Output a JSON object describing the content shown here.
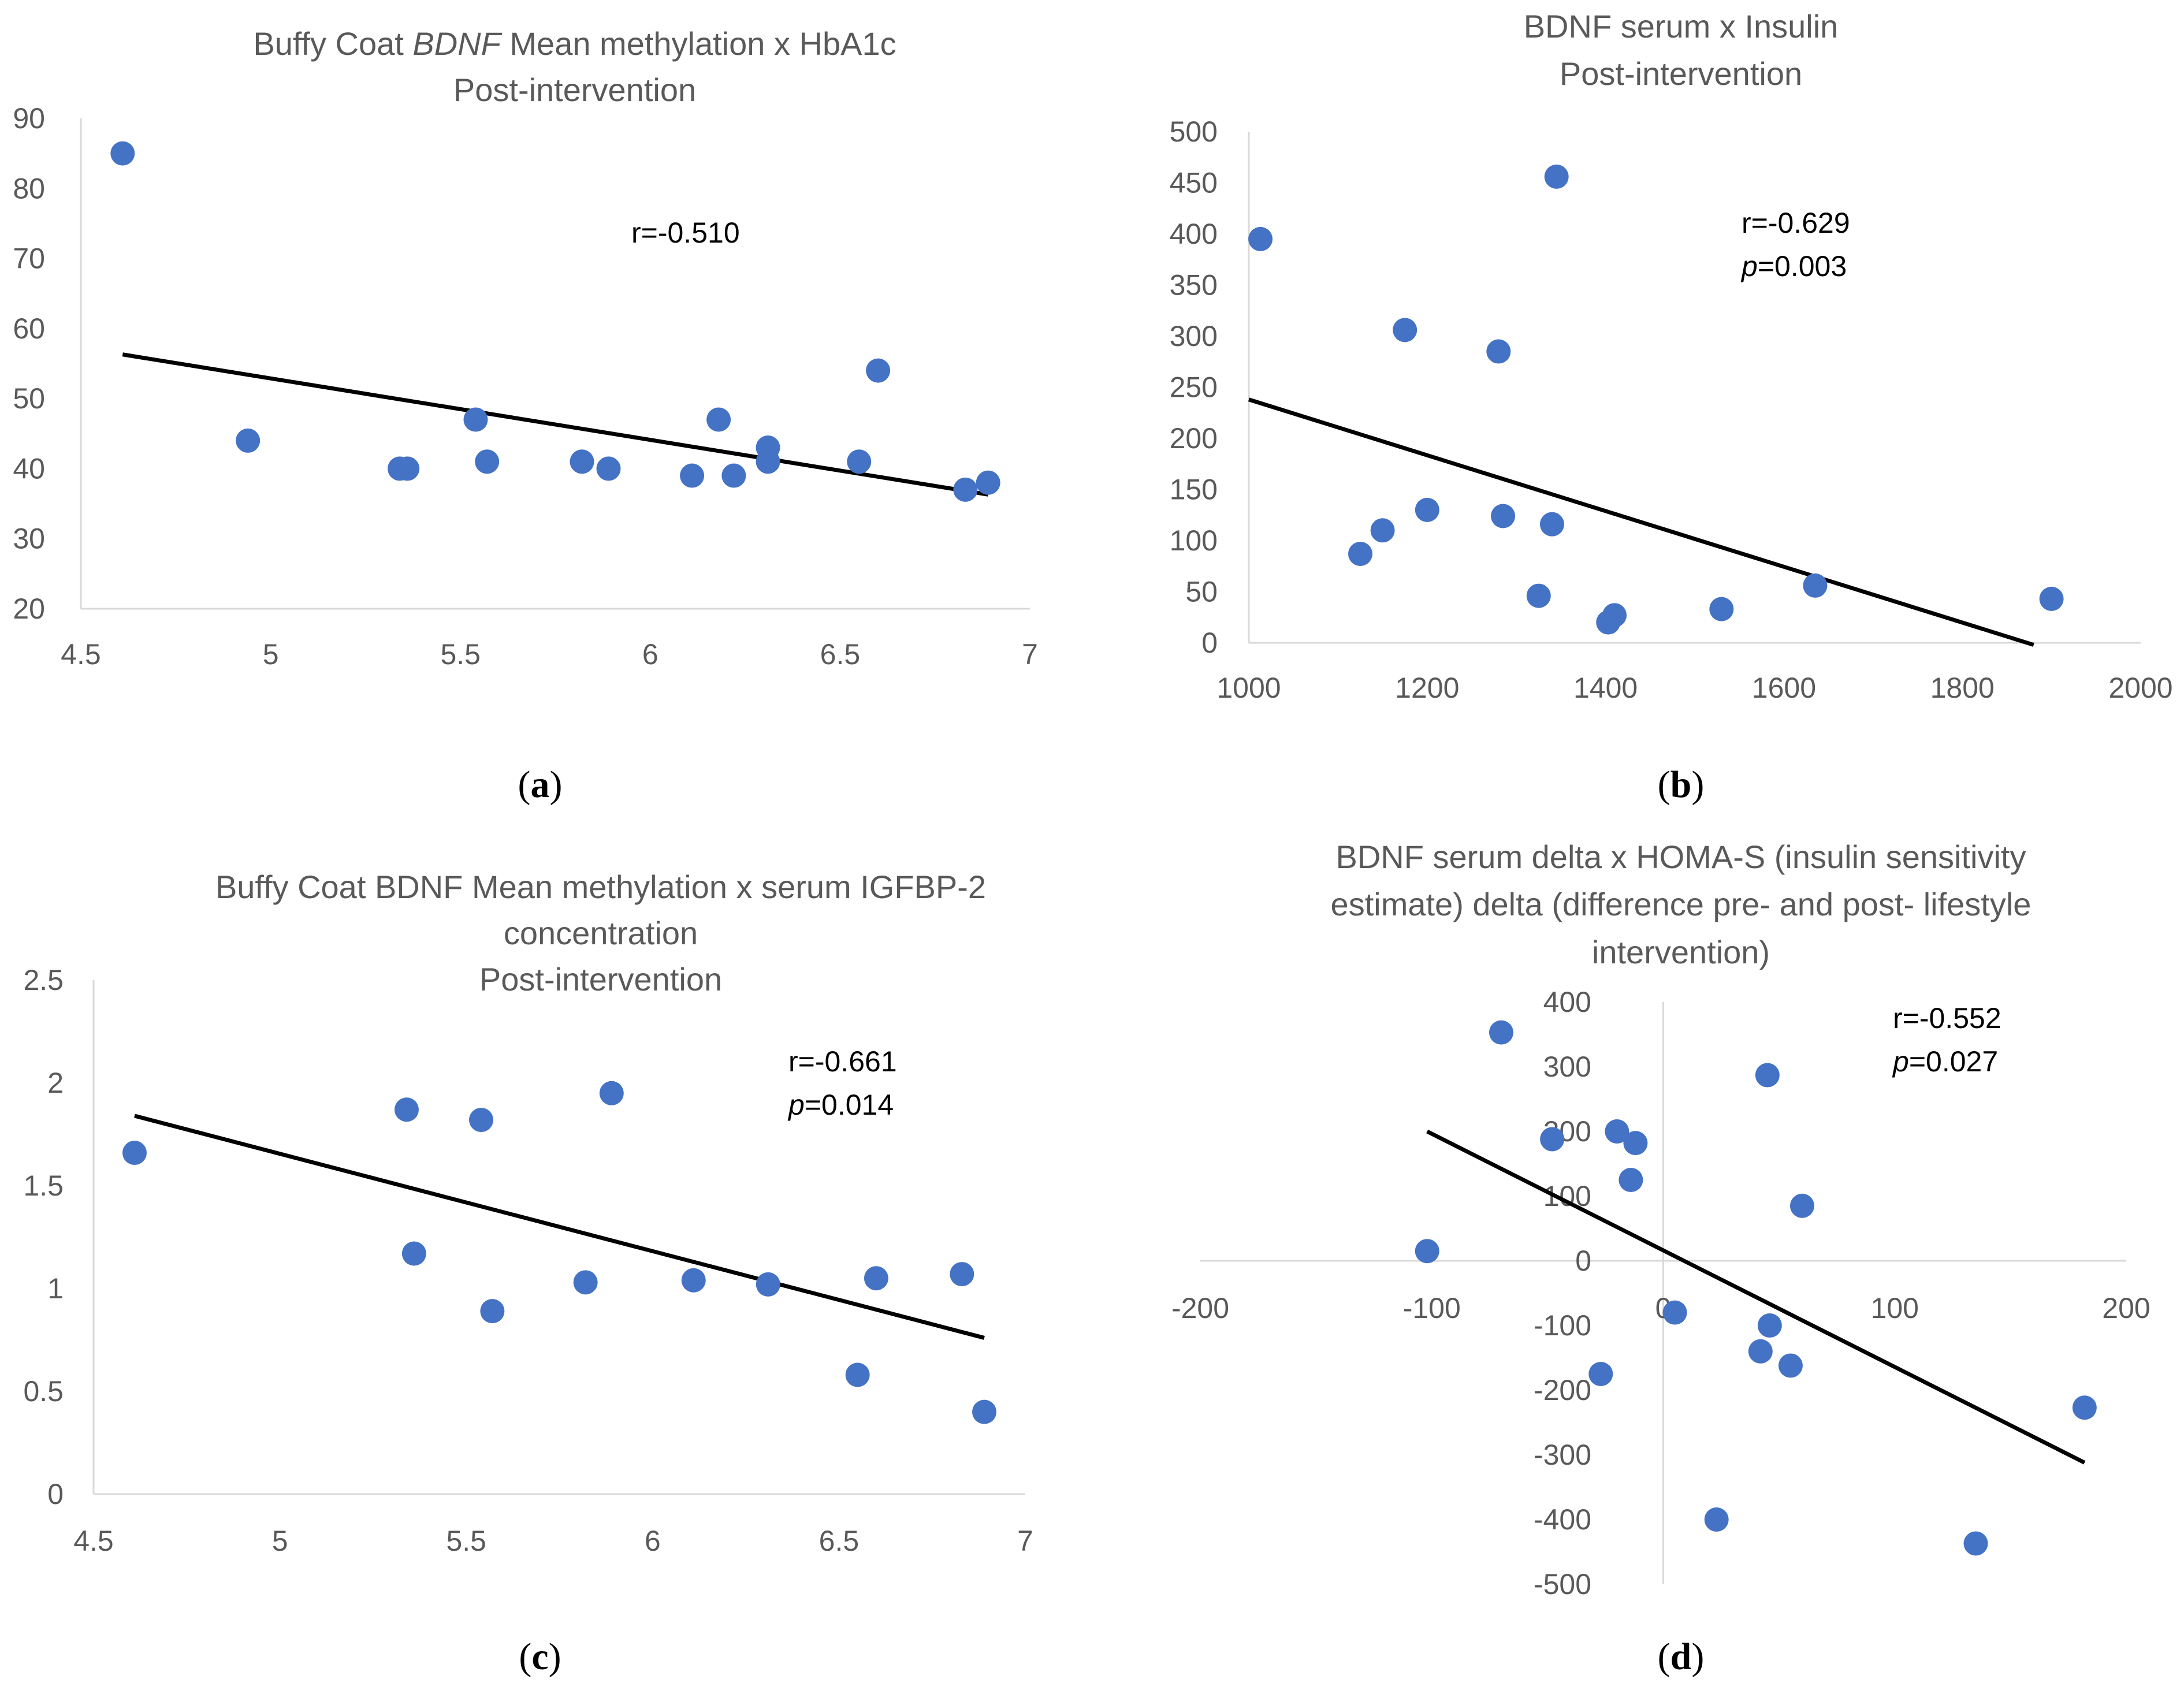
{
  "figure": {
    "panel_labels": [
      "(a)",
      "(b)",
      "(c)",
      "(d)"
    ]
  },
  "chart_data": [
    {
      "type": "scatter",
      "title_lines": [
        [
          "Buffy Coat ",
          "BDNF",
          " Mean methylation x HbA1c"
        ],
        [
          "Post-intervention"
        ]
      ],
      "title_italic_segments": [
        [
          1
        ],
        []
      ],
      "xlim": [
        4.5,
        7
      ],
      "ylim": [
        20,
        90
      ],
      "xticks": [
        4.5,
        5,
        5.5,
        6,
        6.5,
        7
      ],
      "xtick_labels": [
        "4.5",
        "5",
        "5.5",
        "6",
        "6.5",
        "7"
      ],
      "yticks": [
        20,
        30,
        40,
        50,
        60,
        70,
        80,
        90
      ],
      "ytick_labels": [
        "20",
        "30",
        "40",
        "50",
        "60",
        "70",
        "80",
        "90"
      ],
      "points": [
        [
          4.61,
          85
        ],
        [
          4.94,
          44
        ],
        [
          5.34,
          40
        ],
        [
          5.36,
          40
        ],
        [
          5.54,
          47
        ],
        [
          5.57,
          41
        ],
        [
          5.82,
          41
        ],
        [
          5.89,
          40
        ],
        [
          6.11,
          39
        ],
        [
          6.18,
          47
        ],
        [
          6.22,
          39
        ],
        [
          6.31,
          43
        ],
        [
          6.31,
          41
        ],
        [
          6.55,
          41
        ],
        [
          6.6,
          54
        ],
        [
          6.83,
          37
        ],
        [
          6.89,
          38
        ]
      ],
      "trendline": [
        [
          4.61,
          56.3
        ],
        [
          6.89,
          36.3
        ]
      ],
      "annotations": [
        {
          "text": "r=-0.510",
          "italic_p": false
        }
      ],
      "panel_label": "(a)"
    },
    {
      "type": "scatter",
      "title_lines": [
        [
          "BDNF serum x Insulin"
        ],
        [
          "Post-intervention"
        ]
      ],
      "title_italic_segments": [
        [],
        []
      ],
      "xlim": [
        1000,
        2000
      ],
      "ylim": [
        0,
        500
      ],
      "xticks": [
        1000,
        1200,
        1400,
        1600,
        1800,
        2000
      ],
      "xtick_labels": [
        "1000",
        "1200",
        "1400",
        "1600",
        "1800",
        "2000"
      ],
      "yticks": [
        0,
        50,
        100,
        150,
        200,
        250,
        300,
        350,
        400,
        450,
        500
      ],
      "ytick_labels": [
        "0",
        "50",
        "100",
        "150",
        "200",
        "250",
        "300",
        "350",
        "400",
        "450",
        "500"
      ],
      "points": [
        [
          1013,
          395
        ],
        [
          1125,
          87
        ],
        [
          1150,
          110
        ],
        [
          1175,
          306
        ],
        [
          1200,
          130
        ],
        [
          1280,
          285
        ],
        [
          1285,
          124
        ],
        [
          1325,
          46
        ],
        [
          1340,
          116
        ],
        [
          1345,
          456
        ],
        [
          1403,
          20
        ],
        [
          1410,
          27
        ],
        [
          1530,
          33
        ],
        [
          1635,
          56
        ],
        [
          1900,
          43
        ]
      ],
      "trendline": [
        [
          1000,
          238
        ],
        [
          1880,
          -2
        ]
      ],
      "annotations": [
        {
          "text": "r=-0.629"
        },
        {
          "text_p": "p",
          "text_rest": "=0.003"
        }
      ],
      "panel_label": "(b)"
    },
    {
      "type": "scatter",
      "title_lines": [
        [
          "Buffy Coat BDNF Mean methylation x serum IGFBP-2"
        ],
        [
          "concentration"
        ],
        [
          "Post-intervention"
        ]
      ],
      "title_italic_segments": [
        [],
        [],
        []
      ],
      "xlim": [
        4.5,
        7
      ],
      "ylim": [
        0,
        2.5
      ],
      "xticks": [
        4.5,
        5,
        5.5,
        6,
        6.5,
        7
      ],
      "xtick_labels": [
        "4.5",
        "5",
        "5.5",
        "6",
        "6.5",
        "7"
      ],
      "yticks": [
        0,
        0.5,
        1,
        1.5,
        2,
        2.5
      ],
      "ytick_labels": [
        "0",
        "0.5",
        "1",
        "1.5",
        "2",
        "2.5"
      ],
      "points": [
        [
          4.61,
          1.66
        ],
        [
          5.34,
          1.87
        ],
        [
          5.36,
          1.17
        ],
        [
          5.54,
          1.82
        ],
        [
          5.57,
          0.89
        ],
        [
          5.82,
          1.03
        ],
        [
          5.89,
          1.95
        ],
        [
          6.11,
          1.04
        ],
        [
          6.31,
          1.02
        ],
        [
          6.55,
          0.58
        ],
        [
          6.6,
          1.05
        ],
        [
          6.83,
          1.07
        ],
        [
          6.89,
          0.4
        ]
      ],
      "trendline": [
        [
          4.61,
          1.84
        ],
        [
          6.89,
          0.76
        ]
      ],
      "annotations": [
        {
          "text": "r=-0.661"
        },
        {
          "text_p": "p",
          "text_rest": "=0.014"
        }
      ],
      "panel_label": "(c)"
    },
    {
      "type": "scatter",
      "title_lines": [
        [
          "BDNF serum delta x HOMA-S (insulin sensitivity"
        ],
        [
          "estimate) delta (difference pre- and post- lifestyle"
        ],
        [
          "intervention)"
        ]
      ],
      "title_italic_segments": [
        [],
        [],
        []
      ],
      "xlim": [
        -200,
        200
      ],
      "ylim": [
        -500,
        400
      ],
      "xticks": [
        -200,
        -100,
        0,
        100,
        200
      ],
      "xtick_labels": [
        "-200",
        "-100",
        "0",
        "100",
        "200"
      ],
      "yticks": [
        -500,
        -400,
        -300,
        -200,
        -100,
        0,
        100,
        200,
        300,
        400
      ],
      "ytick_labels": [
        "-500",
        "-400",
        "-300",
        "-200",
        "-100",
        "0",
        "100",
        "200",
        "300",
        "400"
      ],
      "points": [
        [
          -102,
          15
        ],
        [
          -70,
          353
        ],
        [
          -48,
          188
        ],
        [
          -20,
          200
        ],
        [
          -27,
          -175
        ],
        [
          -12,
          182
        ],
        [
          -14,
          125
        ],
        [
          5,
          -80
        ],
        [
          23,
          -400
        ],
        [
          42,
          -140
        ],
        [
          45,
          287
        ],
        [
          46,
          -100
        ],
        [
          55,
          -162
        ],
        [
          60,
          85
        ],
        [
          135,
          -437
        ],
        [
          182,
          -227
        ]
      ],
      "trendline": [
        [
          -102,
          200
        ],
        [
          182,
          -312
        ]
      ],
      "annotations": [
        {
          "text": "r=-0.552"
        },
        {
          "text_p": "p",
          "text_rest": "=0.027"
        }
      ],
      "panel_label": "(d)"
    }
  ]
}
